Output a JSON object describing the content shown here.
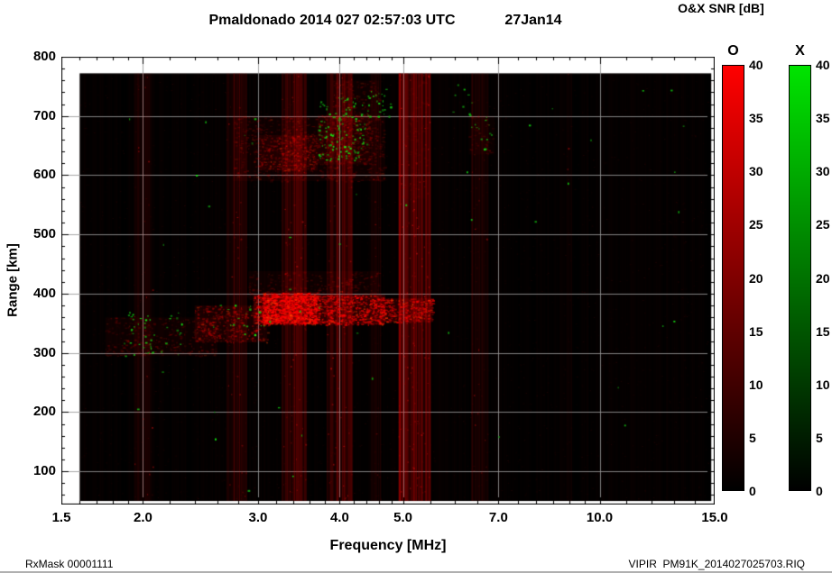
{
  "header": {
    "title": "Pmaldonado 2014 027 02:57:03 UTC",
    "date": "27Jan14",
    "colorbar_title": "O&X SNR [dB]"
  },
  "footer": {
    "left": "RxMask 00001111",
    "right": "VIPIR  PM91K_2014027025703.RIQ"
  },
  "chart_data": {
    "type": "heatmap",
    "title": "Pmaldonado 2014 027 02:57:03 UTC",
    "subtitle": "27Jan14",
    "legend_title": "O&X SNR [dB]",
    "xlabel": "Frequency [MHz]",
    "ylabel": "Range [km]",
    "x_scale": "log",
    "xlim": [
      1.5,
      15.0
    ],
    "ylim": [
      44,
      800
    ],
    "x_major_ticks": [
      1.5,
      2.0,
      3.0,
      4.0,
      5.0,
      7.0,
      10.0,
      15.0
    ],
    "x_tick_labels": [
      "1.5",
      "2.0",
      "3.0",
      "4.0",
      "5.0",
      "7.0",
      "10.0",
      "15.0"
    ],
    "x_minor_ticks": [
      1.6,
      1.7,
      1.8,
      1.9,
      2.2,
      2.4,
      2.6,
      2.8,
      3.2,
      3.4,
      3.6,
      3.8,
      4.2,
      4.4,
      4.6,
      4.8,
      5.5,
      6.0,
      6.5,
      7.5,
      8.0,
      8.5,
      9.0,
      9.5,
      11.0,
      12.0,
      13.0,
      14.0
    ],
    "y_major_ticks": [
      100,
      200,
      300,
      400,
      500,
      600,
      700,
      800
    ],
    "y_minor_step": 20,
    "grid": true,
    "grid_color": "#999999",
    "plot_bg": "#000000",
    "data_region": {
      "f": [
        1.6,
        14.82
      ],
      "range": [
        50,
        772
      ]
    },
    "colorbars": [
      {
        "label": "O",
        "units": "dB",
        "min": 0,
        "max": 40,
        "ticks": [
          40,
          35,
          30,
          25,
          20,
          15,
          10,
          5,
          0
        ],
        "color": "#ff0000"
      },
      {
        "label": "X",
        "units": "dB",
        "min": 0,
        "max": 40,
        "ticks": [
          40,
          35,
          30,
          25,
          20,
          15,
          10,
          5,
          0
        ],
        "color": "#00e400"
      }
    ],
    "features": {
      "noise": {
        "dots": 5200,
        "color": "#ff2020",
        "max_alpha": 0.1
      },
      "rfi_bands": [
        {
          "f": [
            1.93,
            2.07
          ],
          "range": [
            50,
            772
          ],
          "intensity": 0.05
        },
        {
          "f": [
            2.68,
            2.88
          ],
          "range": [
            50,
            772
          ],
          "intensity": 0.08
        },
        {
          "f": [
            3.26,
            3.55
          ],
          "range": [
            50,
            772
          ],
          "intensity": 0.13
        },
        {
          "f": [
            3.82,
            4.18
          ],
          "range": [
            50,
            772
          ],
          "intensity": 0.12
        },
        {
          "f": [
            4.45,
            4.63
          ],
          "range": [
            50,
            772
          ],
          "intensity": 0.05
        },
        {
          "f": [
            4.92,
            5.5
          ],
          "range": [
            50,
            772
          ],
          "intensity": 0.2
        },
        {
          "f": [
            6.35,
            6.75
          ],
          "range": [
            50,
            772
          ],
          "intensity": 0.06
        },
        {
          "f": [
            8.9,
            9.05
          ],
          "range": [
            50,
            772
          ],
          "intensity": 0.025
        }
      ],
      "echo_traces": [
        {
          "f": [
            1.75,
            2.6
          ],
          "range": [
            295,
            360
          ],
          "intensity": 0.22
        },
        {
          "f": [
            2.4,
            3.1
          ],
          "range": [
            318,
            380
          ],
          "intensity": 0.4
        },
        {
          "f": [
            2.95,
            4.7
          ],
          "range": [
            348,
            398
          ],
          "intensity": 0.8
        },
        {
          "f": [
            3.05,
            3.7
          ],
          "range": [
            350,
            402
          ],
          "intensity": 1.0
        },
        {
          "f": [
            4.6,
            5.55
          ],
          "range": [
            352,
            392
          ],
          "intensity": 0.65
        },
        {
          "f": [
            2.9,
            4.6
          ],
          "range": [
            390,
            438
          ],
          "intensity": 0.22
        },
        {
          "f": [
            2.75,
            4.7
          ],
          "range": [
            590,
            700
          ],
          "intensity": 0.22
        },
        {
          "f": [
            3.0,
            3.7
          ],
          "range": [
            608,
            668
          ],
          "intensity": 0.38
        },
        {
          "f": [
            3.7,
            4.45
          ],
          "range": [
            618,
            702
          ],
          "intensity": 0.3
        },
        {
          "f": [
            3.9,
            4.6
          ],
          "range": [
            690,
            760
          ],
          "intensity": 0.22
        },
        {
          "f": [
            6.3,
            6.9
          ],
          "range": [
            635,
            700
          ],
          "intensity": 0.16
        },
        {
          "f": [
            5.0,
            5.45
          ],
          "range": [
            560,
            760
          ],
          "intensity": 0.12
        }
      ],
      "x_mode_speckles": [
        {
          "f": [
            3.7,
            4.4
          ],
          "range": [
            625,
            735
          ],
          "count": 130
        },
        {
          "f": [
            4.4,
            4.8
          ],
          "range": [
            698,
            765
          ],
          "count": 28
        },
        {
          "f": [
            1.82,
            2.3
          ],
          "range": [
            295,
            370
          ],
          "count": 48
        },
        {
          "f": [
            2.55,
            3.15
          ],
          "range": [
            330,
            382
          ],
          "count": 18
        },
        {
          "f": [
            6.3,
            6.95
          ],
          "range": [
            640,
            705
          ],
          "count": 14
        },
        {
          "f": [
            5.9,
            6.4
          ],
          "range": [
            700,
            760
          ],
          "count": 8
        },
        {
          "f": [
            1.7,
            14.0
          ],
          "range": [
            60,
            760
          ],
          "count": 45
        }
      ]
    }
  }
}
